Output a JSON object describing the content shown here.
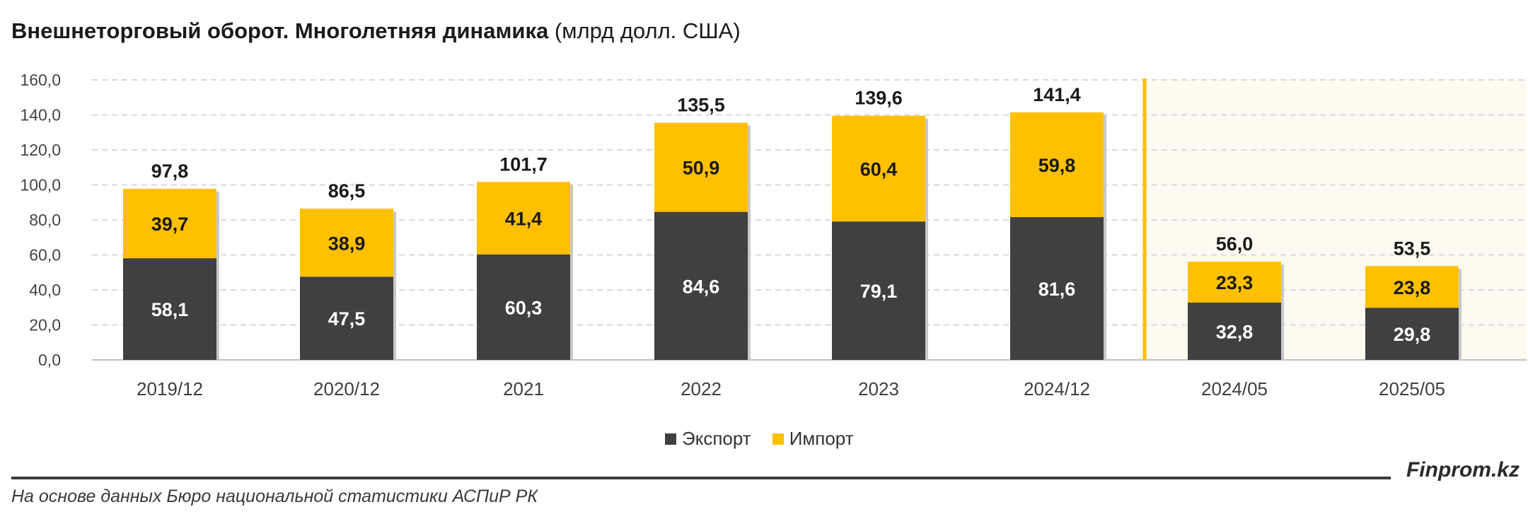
{
  "title": {
    "bold": "Внешнеторговый оборот. Многолетняя динамика",
    "unit": "(млрд долл. США)"
  },
  "footer": {
    "source": "На основе данных Бюро национальной статистики АСПиР РК",
    "brand": "Finprom.kz"
  },
  "colors": {
    "export": "#404040",
    "import": "#FFC000",
    "separator": "#FFC000",
    "highlight_bg": "#FDFBF0",
    "grid": "#d9d9d9"
  },
  "chart_data": {
    "type": "bar",
    "stacked": true,
    "categories": [
      "2019/12",
      "2020/12",
      "2021",
      "2022",
      "2023",
      "2024/12",
      "2024/05",
      "2025/05"
    ],
    "series": [
      {
        "name": "Экспорт",
        "values": [
          58.1,
          47.5,
          60.3,
          84.6,
          79.1,
          81.6,
          32.8,
          29.8
        ]
      },
      {
        "name": "Импорт",
        "values": [
          39.7,
          38.9,
          41.4,
          50.9,
          60.4,
          59.8,
          23.3,
          23.8
        ]
      }
    ],
    "value_labels": {
      "export": [
        "58,1",
        "47,5",
        "60,3",
        "84,6",
        "79,1",
        "81,6",
        "32,8",
        "29,8"
      ],
      "import": [
        "39,7",
        "38,9",
        "41,4",
        "50,9",
        "60,4",
        "59,8",
        "23,3",
        "23,8"
      ],
      "total": [
        "97,8",
        "86,5",
        "101,7",
        "135,5",
        "139,6",
        "141,4",
        "56,0",
        "53,5"
      ]
    },
    "y_ticks": [
      "0,0",
      "20,0",
      "40,0",
      "60,0",
      "80,0",
      "100,0",
      "120,0",
      "140,0",
      "160,0"
    ],
    "ylim": [
      0,
      160
    ],
    "grid": true,
    "highlight_categories": [
      "2024/05",
      "2025/05"
    ],
    "legend_position": "bottom-center"
  }
}
